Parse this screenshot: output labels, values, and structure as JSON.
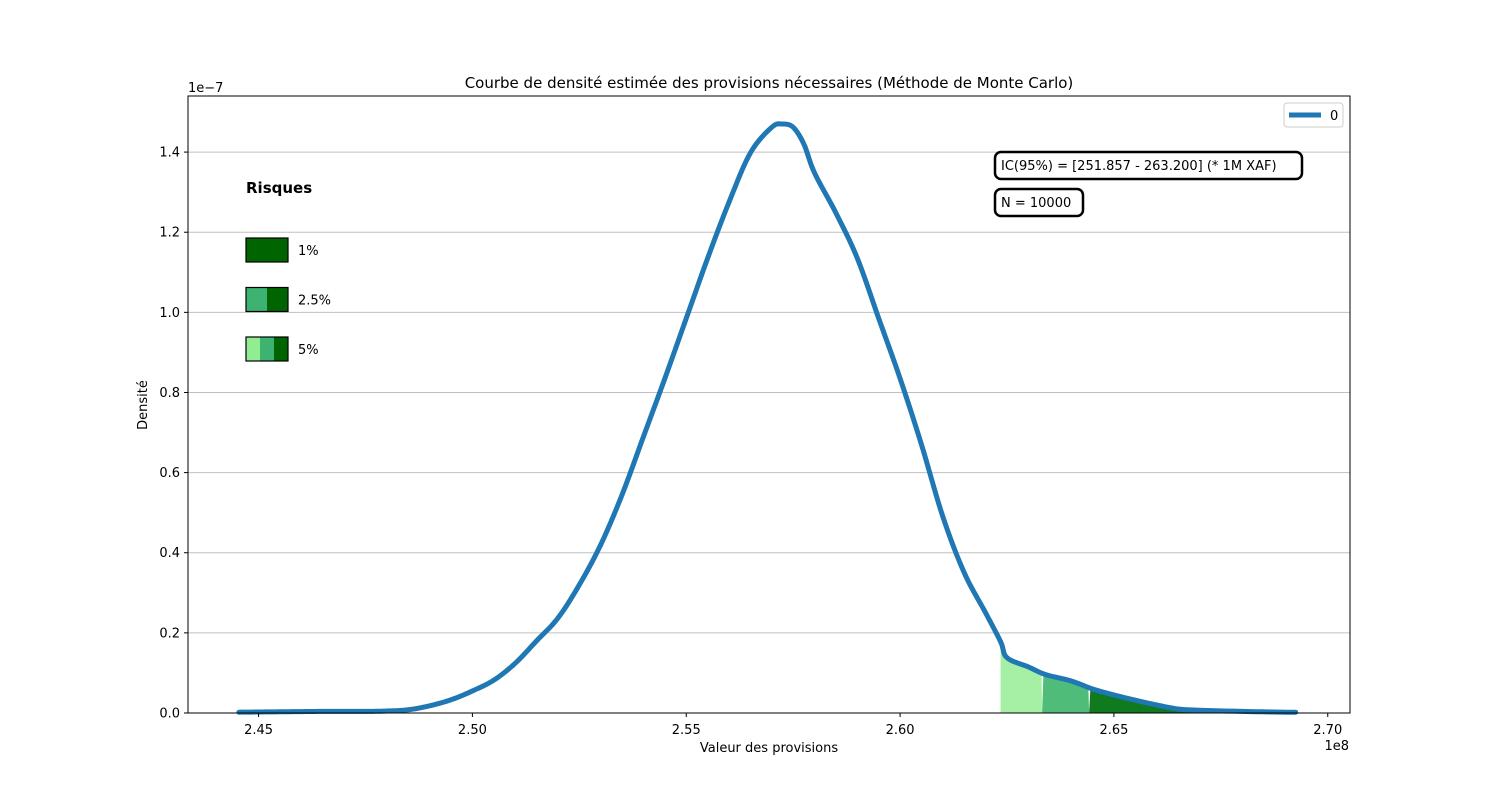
{
  "chart_data": {
    "type": "area",
    "title": "Courbe de densité estimée des provisions nécessaires (Méthode de Monte Carlo)",
    "xlabel": "Valeur des provisions",
    "ylabel": "Densité",
    "x_multiplier_label": "1e8",
    "y_multiplier_label": "1e−7",
    "xlim": [
      2.4335,
      2.7052
    ],
    "ylim": [
      0,
      1.54
    ],
    "x_ticks": [
      2.45,
      2.5,
      2.55,
      2.6,
      2.65,
      2.7
    ],
    "x_tick_labels": [
      "2.45",
      "2.50",
      "2.55",
      "2.60",
      "2.65",
      "2.70"
    ],
    "y_ticks": [
      0.0,
      0.2,
      0.4,
      0.6,
      0.8,
      1.0,
      1.2,
      1.4
    ],
    "y_tick_labels": [
      "0.0",
      "0.2",
      "0.4",
      "0.6",
      "0.8",
      "1.0",
      "1.2",
      "1.4"
    ],
    "grid": "horizontal",
    "legend_position": "top-right",
    "series": [
      {
        "name": "0",
        "color": "#1f77b4",
        "x": [
          2.4454,
          2.455,
          2.465,
          2.475,
          2.48,
          2.485,
          2.49,
          2.495,
          2.5,
          2.505,
          2.51,
          2.515,
          2.52,
          2.525,
          2.53,
          2.535,
          2.54,
          2.545,
          2.55,
          2.555,
          2.56,
          2.565,
          2.57,
          2.5725,
          2.575,
          2.5775,
          2.58,
          2.585,
          2.59,
          2.595,
          2.6,
          2.605,
          2.61,
          2.615,
          2.62,
          2.6235,
          2.625,
          2.63,
          2.634,
          2.64,
          2.645,
          2.65,
          2.655,
          2.66,
          2.665,
          2.67,
          2.68,
          2.69,
          2.6925
        ],
        "y": [
          0.002,
          0.003,
          0.004,
          0.004,
          0.005,
          0.008,
          0.018,
          0.033,
          0.055,
          0.082,
          0.124,
          0.18,
          0.237,
          0.32,
          0.42,
          0.545,
          0.69,
          0.835,
          0.985,
          1.135,
          1.275,
          1.398,
          1.462,
          1.47,
          1.462,
          1.42,
          1.348,
          1.248,
          1.135,
          0.985,
          0.835,
          0.67,
          0.49,
          0.35,
          0.25,
          0.178,
          0.138,
          0.115,
          0.096,
          0.08,
          0.06,
          0.045,
          0.032,
          0.02,
          0.01,
          0.007,
          0.004,
          0.002,
          0.002
        ]
      }
    ],
    "risk_areas": [
      {
        "label": "5%",
        "from": 2.6235,
        "to": 2.6332,
        "color": "#a6f0a6"
      },
      {
        "label": "2.5%",
        "from": 2.6332,
        "to": 2.6442,
        "color": "#4fbc79"
      },
      {
        "label": "1%",
        "from": 2.6442,
        "to": 2.6925,
        "color": "#0f7a1e"
      }
    ],
    "risk_legend": {
      "title": "Risques",
      "items": [
        {
          "label": "1%",
          "colors": [
            "#006400"
          ]
        },
        {
          "label": "2.5%",
          "colors": [
            "#3cb371",
            "#006400"
          ]
        },
        {
          "label": "5%",
          "colors": [
            "#90ee90",
            "#3cb371",
            "#006400"
          ]
        }
      ]
    },
    "annotations": [
      "IC(95%) = [251.857 - 263.200] (* 1M XAF)",
      "N = 10000"
    ]
  }
}
